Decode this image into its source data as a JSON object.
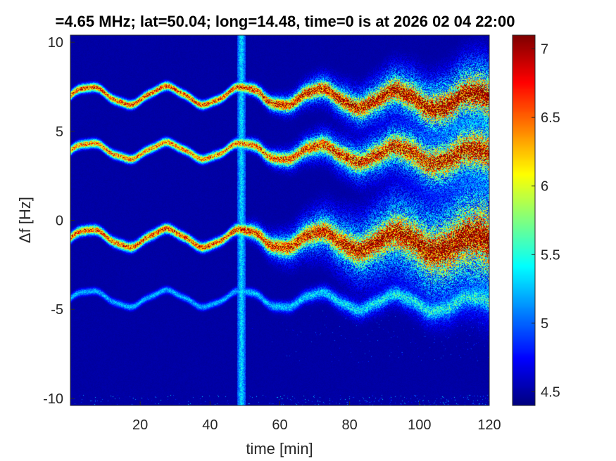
{
  "chart_data": {
    "type": "heatmap",
    "title": "=4.65 MHz;  lat=50.04; long=14.48, time=0 is at 2026 02 04 22:00",
    "xlabel": "time [min]",
    "ylabel": "Δf [Hz]",
    "xlim": [
      0,
      120
    ],
    "ylim": [
      -10.4,
      10.4
    ],
    "x_ticks": [
      20,
      40,
      60,
      80,
      100,
      120
    ],
    "y_ticks": [
      -10,
      -5,
      0,
      5,
      10
    ],
    "colorbar": {
      "colormap": "jet",
      "range": [
        4.4,
        7.1
      ],
      "ticks": [
        4.5,
        5,
        5.5,
        6,
        6.5,
        7
      ]
    },
    "background_color": "#00008f",
    "traces": [
      {
        "base_hz": 7.0,
        "ripple_hz": 0.35,
        "intensity": 6.9,
        "spread_start_hz": 0.15,
        "spread_end_hz": 1.4
      },
      {
        "base_hz": 3.9,
        "ripple_hz": 0.3,
        "intensity": 6.7,
        "spread_start_hz": 0.15,
        "spread_end_hz": 1.5
      },
      {
        "base_hz": -1.0,
        "ripple_hz": 0.35,
        "intensity": 6.9,
        "spread_start_hz": 0.2,
        "spread_end_hz": 2.4
      },
      {
        "base_hz": -4.4,
        "ripple_hz": 0.3,
        "intensity": 5.3,
        "spread_start_hz": 0.1,
        "spread_end_hz": 0.9
      }
    ],
    "vertical_band": {
      "time_min": 49,
      "width_min": 1.2,
      "intensity": 5.6
    }
  }
}
